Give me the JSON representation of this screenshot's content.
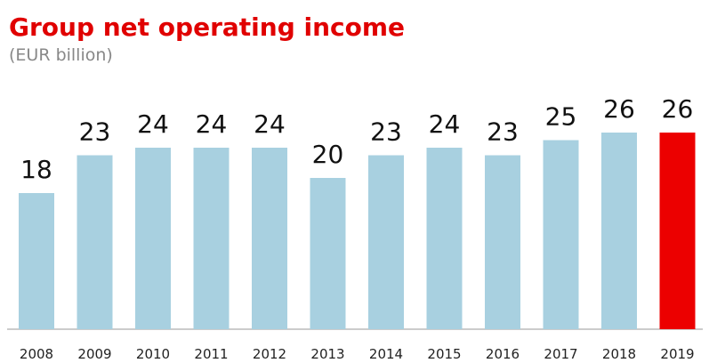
{
  "chart_data": {
    "type": "bar",
    "title": "Group net operating income",
    "subtitle": "(EUR billion)",
    "categories": [
      "2008",
      "2009",
      "2010",
      "2011",
      "2012",
      "2013",
      "2014",
      "2015",
      "2016",
      "2017",
      "2018",
      "2019"
    ],
    "values": [
      18,
      23,
      24,
      24,
      24,
      20,
      23,
      24,
      23,
      25,
      26,
      26
    ],
    "colors": [
      "#a8d0e0",
      "#a8d0e0",
      "#a8d0e0",
      "#a8d0e0",
      "#a8d0e0",
      "#a8d0e0",
      "#a8d0e0",
      "#a8d0e0",
      "#a8d0e0",
      "#a8d0e0",
      "#a8d0e0",
      "#ec0000"
    ]
  }
}
